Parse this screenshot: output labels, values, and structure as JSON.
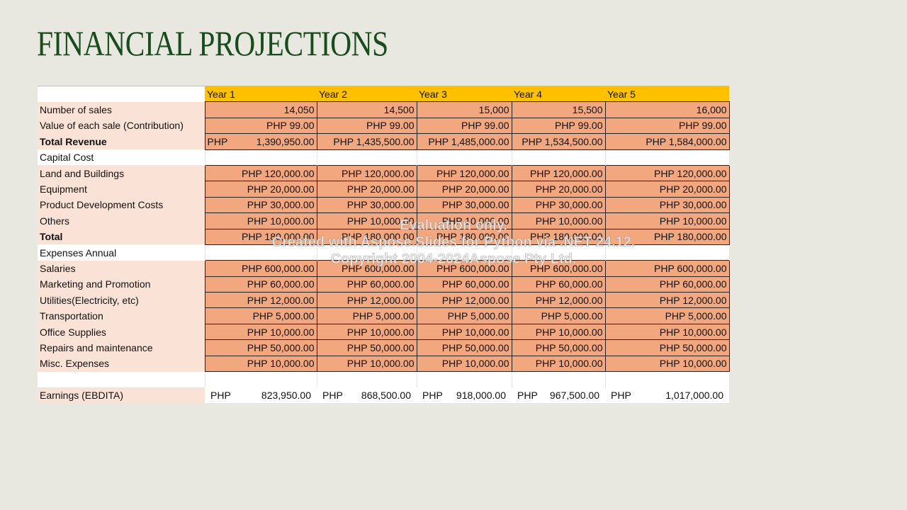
{
  "title": "FINANCIAL PROJECTIONS",
  "table": {
    "years": [
      "Year 1",
      "Year 2",
      "Year 3",
      "Year 4",
      "Year 5"
    ],
    "rows": {
      "number_of_sales": {
        "label": "Number of sales",
        "values": [
          "14,050",
          "14,500",
          "15,000",
          "15,500",
          "16,000"
        ]
      },
      "value_each_sale": {
        "label": "Value of each sale (Contribution)",
        "values": [
          "PHP 99.00",
          "PHP 99.00",
          "PHP 99.00",
          "PHP 99.00",
          "PHP 99.00"
        ]
      },
      "total_revenue": {
        "label": "Total Revenue",
        "first_currency": "PHP",
        "first_amount": "1,390,950.00",
        "values": [
          "PHP 1,390,950.00",
          "PHP 1,435,500.00",
          "PHP 1,485,000.00",
          "PHP 1,534,500.00",
          "PHP 1,584,000.00"
        ]
      },
      "capital_cost": {
        "label": "Capital Cost"
      },
      "land_buildings": {
        "label": "Land and Buildings",
        "values": [
          "PHP 120,000.00",
          "PHP 120,000.00",
          "PHP 120,000.00",
          "PHP 120,000.00",
          "PHP 120,000.00"
        ]
      },
      "equipment": {
        "label": "Equipment",
        "values": [
          "PHP 20,000.00",
          "PHP 20,000.00",
          "PHP 20,000.00",
          "PHP 20,000.00",
          "PHP 20,000.00"
        ]
      },
      "product_dev": {
        "label": "Product Development Costs",
        "values": [
          "PHP 30,000.00",
          "PHP 30,000.00",
          "PHP 30,000.00",
          "PHP 30,000.00",
          "PHP 30,000.00"
        ]
      },
      "others": {
        "label": "Others",
        "values": [
          "PHP 10,000.00",
          "PHP 10,000.00",
          "PHP 10,000.00",
          "PHP 10,000.00",
          "PHP 10,000.00"
        ]
      },
      "total": {
        "label": "Total",
        "values": [
          "PHP 180,000.00",
          "PHP 180,000.00",
          "PHP 180,000.00",
          "PHP 180,000.00",
          "PHP 180,000.00"
        ]
      },
      "expenses_annual": {
        "label": "Expenses Annual"
      },
      "salaries": {
        "label": "Salaries",
        "values": [
          "PHP 600,000.00",
          "PHP 600,000.00",
          "PHP 600,000.00",
          "PHP 600,000.00",
          "PHP 600,000.00"
        ]
      },
      "marketing": {
        "label": "Marketing and Promotion",
        "values": [
          "PHP 60,000.00",
          "PHP 60,000.00",
          "PHP 60,000.00",
          "PHP 60,000.00",
          "PHP 60,000.00"
        ]
      },
      "utilities": {
        "label": "Utilities(Electricity, etc)",
        "values": [
          "PHP 12,000.00",
          "PHP 12,000.00",
          "PHP 12,000.00",
          "PHP 12,000.00",
          "PHP 12,000.00"
        ]
      },
      "transportation": {
        "label": "Transportation",
        "values": [
          "PHP 5,000.00",
          "PHP 5,000.00",
          "PHP 5,000.00",
          "PHP 5,000.00",
          "PHP 5,000.00"
        ]
      },
      "office_supplies": {
        "label": "Office Supplies",
        "values": [
          "PHP 10,000.00",
          "PHP 10,000.00",
          "PHP 10,000.00",
          "PHP 10,000.00",
          "PHP 10,000.00"
        ]
      },
      "repairs": {
        "label": "Repairs and maintenance",
        "values": [
          "PHP 50,000.00",
          "PHP 50,000.00",
          "PHP 50,000.00",
          "PHP 50,000.00",
          "PHP 50,000.00"
        ]
      },
      "misc": {
        "label": "Misc. Expenses",
        "values": [
          "PHP 10,000.00",
          "PHP 10,000.00",
          "PHP 10,000.00",
          "PHP 10,000.00",
          "PHP 10,000.00"
        ]
      },
      "earnings": {
        "label": "Earnings (EBDITA)",
        "currency": "PHP",
        "amounts": [
          "823,950.00",
          "868,500.00",
          "918,000.00",
          "967,500.00",
          "1,017,000.00"
        ]
      }
    }
  },
  "watermark": {
    "line1": "Evaluation only.",
    "line2": "Created with Aspose.Slides for Python via .NET 24.12.",
    "line3": "Copyright 2004-2024Aspose Pty Ltd."
  },
  "colors": {
    "title": "#174d1c",
    "background": "#e8e8e0",
    "header": "#ffc000",
    "label_fill": "#fbe2d6",
    "value_fill": "#f2a77e"
  }
}
